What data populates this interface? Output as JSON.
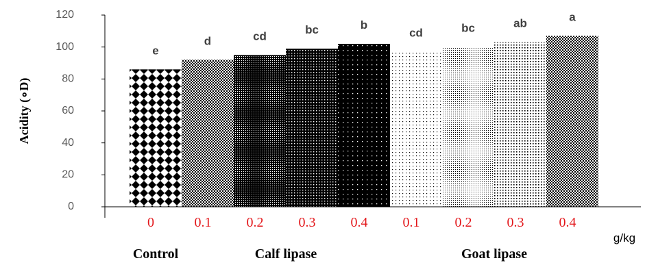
{
  "chart_data": {
    "type": "bar",
    "categories": [
      "0",
      "0.1",
      "0.2",
      "0.3",
      "0.4",
      "0.1",
      "0.2",
      "0.3",
      "0.4"
    ],
    "values": [
      86,
      92,
      95,
      99,
      102,
      97,
      100,
      103,
      107
    ],
    "significance_letters": [
      "e",
      "d",
      "cd",
      "bc",
      "b",
      "cd",
      "bc",
      "ab",
      "a"
    ],
    "groups": [
      {
        "label": "Control",
        "from": 0,
        "to": 0
      },
      {
        "label": "Calf lipase",
        "from": 1,
        "to": 4
      },
      {
        "label": "Goat lipase",
        "from": 5,
        "to": 8
      }
    ],
    "ylabel": "Acidity (∘D)",
    "xunit": "g/kg",
    "ylim": [
      0,
      120
    ],
    "yticks": [
      0,
      20,
      40,
      60,
      80,
      100,
      120
    ],
    "grid": false,
    "legend": "none",
    "colors": {
      "bar_dark": "#000000",
      "bar_light": "#ffffff",
      "category_label": "#e3171b",
      "letter_label": "#404040",
      "tick_label": "#595959"
    }
  }
}
